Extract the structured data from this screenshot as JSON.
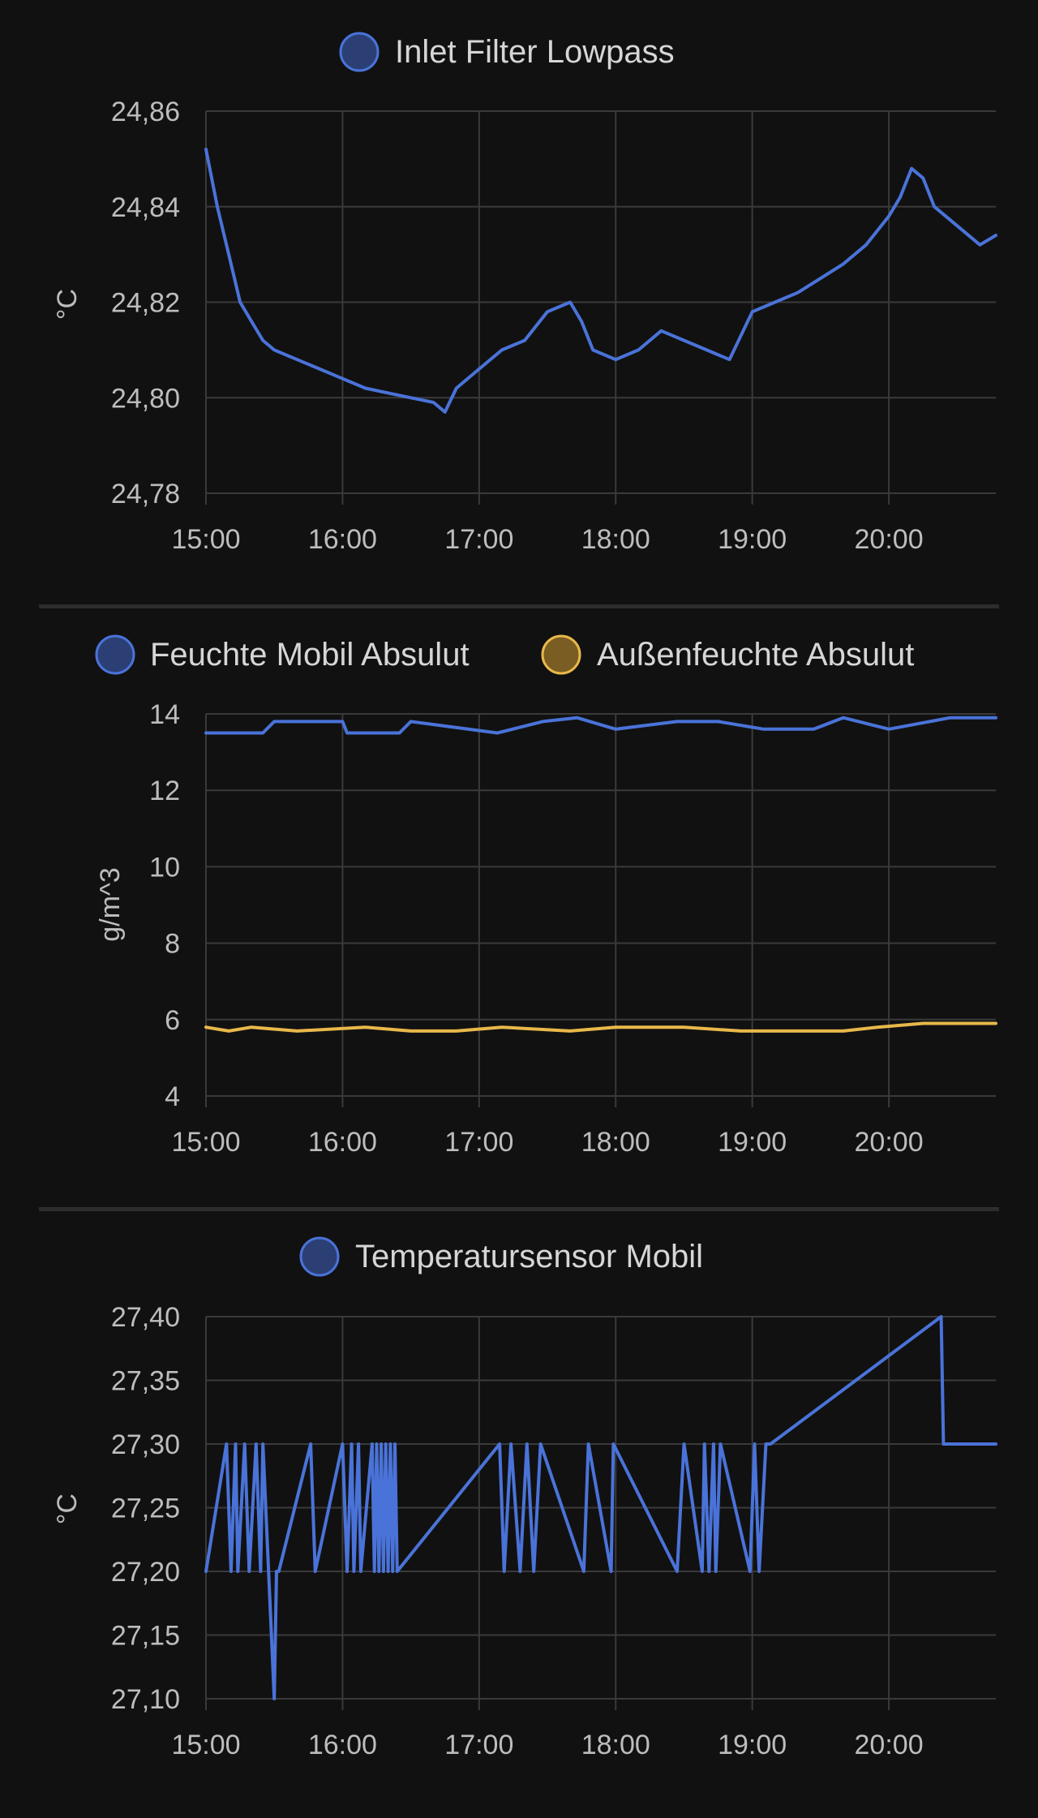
{
  "colors": {
    "background": "#111111",
    "grid": "#3a3a3a",
    "divider": "#2d2d2d",
    "text": "#d6d6d6",
    "tick_text": "#bdbdbd",
    "series_blue": "#4a73d9",
    "series_yellow": "#e8b84a"
  },
  "chart_data": [
    {
      "type": "line",
      "legend": [
        "Inlet Filter Lowpass"
      ],
      "ylabel": "°C",
      "xlabel": "",
      "x_ticks": [
        "15:00",
        "16:00",
        "17:00",
        "18:00",
        "19:00",
        "20:00"
      ],
      "y_ticks": [
        "24,78",
        "24,80",
        "24,82",
        "24,84",
        "24,86"
      ],
      "xlim": [
        "15:00",
        "20:47"
      ],
      "ylim": [
        24.78,
        24.86
      ],
      "grid": true,
      "legend_position": "top-center",
      "series": [
        {
          "name": "Inlet Filter Lowpass",
          "color": "#4a73d9",
          "x": [
            "15:00",
            "15:05",
            "15:10",
            "15:15",
            "15:20",
            "15:25",
            "15:30",
            "15:40",
            "15:50",
            "16:00",
            "16:10",
            "16:20",
            "16:30",
            "16:40",
            "16:45",
            "16:50",
            "17:00",
            "17:10",
            "17:20",
            "17:30",
            "17:40",
            "17:45",
            "17:50",
            "18:00",
            "18:10",
            "18:20",
            "18:30",
            "18:40",
            "18:50",
            "19:00",
            "19:10",
            "19:20",
            "19:30",
            "19:40",
            "19:50",
            "20:00",
            "20:05",
            "20:10",
            "20:15",
            "20:20",
            "20:30",
            "20:40",
            "20:47"
          ],
          "y": [
            24.852,
            24.84,
            24.83,
            24.82,
            24.816,
            24.812,
            24.81,
            24.808,
            24.806,
            24.804,
            24.802,
            24.801,
            24.8,
            24.799,
            24.797,
            24.802,
            24.806,
            24.81,
            24.812,
            24.818,
            24.82,
            24.816,
            24.81,
            24.808,
            24.81,
            24.814,
            24.812,
            24.81,
            24.808,
            24.818,
            24.82,
            24.822,
            24.825,
            24.828,
            24.832,
            24.838,
            24.842,
            24.848,
            24.846,
            24.84,
            24.836,
            24.832,
            24.834
          ]
        }
      ]
    },
    {
      "type": "line",
      "legend": [
        "Feuchte Mobil Absulut",
        "Außenfeuchte Absulut"
      ],
      "ylabel": "g/m^3",
      "xlabel": "",
      "x_ticks": [
        "15:00",
        "16:00",
        "17:00",
        "18:00",
        "19:00",
        "20:00"
      ],
      "y_ticks": [
        "4",
        "6",
        "8",
        "10",
        "12",
        "14"
      ],
      "xlim": [
        "15:00",
        "20:47"
      ],
      "ylim": [
        4,
        14
      ],
      "grid": true,
      "legend_position": "top-center",
      "series": [
        {
          "name": "Feuchte Mobil Absulut",
          "color": "#4a73d9",
          "x": [
            "15:00",
            "15:25",
            "15:30",
            "16:00",
            "16:02",
            "16:25",
            "16:30",
            "17:08",
            "17:28",
            "17:43",
            "18:00",
            "18:27",
            "18:45",
            "19:05",
            "19:27",
            "19:40",
            "20:00",
            "20:27",
            "20:47"
          ],
          "y": [
            13.5,
            13.5,
            13.8,
            13.8,
            13.5,
            13.5,
            13.8,
            13.5,
            13.8,
            13.9,
            13.6,
            13.8,
            13.8,
            13.6,
            13.6,
            13.9,
            13.6,
            13.9,
            13.9
          ]
        },
        {
          "name": "Außenfeuchte Absulut",
          "color": "#e8b84a",
          "x": [
            "15:00",
            "15:10",
            "15:20",
            "15:40",
            "16:10",
            "16:30",
            "16:50",
            "17:10",
            "17:40",
            "18:00",
            "18:30",
            "18:55",
            "19:15",
            "19:40",
            "19:55",
            "20:15",
            "20:47"
          ],
          "y": [
            5.8,
            5.7,
            5.8,
            5.7,
            5.8,
            5.7,
            5.7,
            5.8,
            5.7,
            5.8,
            5.8,
            5.7,
            5.7,
            5.7,
            5.8,
            5.9,
            5.9
          ]
        }
      ]
    },
    {
      "type": "line",
      "legend": [
        "Temperatursensor Mobil"
      ],
      "ylabel": "°C",
      "xlabel": "",
      "x_ticks": [
        "15:00",
        "16:00",
        "17:00",
        "18:00",
        "19:00",
        "20:00"
      ],
      "y_ticks": [
        "27,10",
        "27,15",
        "27,20",
        "27,25",
        "27,30",
        "27,35",
        "27,40"
      ],
      "xlim": [
        "15:00",
        "20:47"
      ],
      "ylim": [
        27.1,
        27.4
      ],
      "grid": true,
      "legend_position": "top-center",
      "series": [
        {
          "name": "Temperatursensor Mobil",
          "color": "#4a73d9",
          "x": [
            "15:00",
            "15:09",
            "15:11",
            "15:13",
            "15:14",
            "15:17",
            "15:19",
            "15:22",
            "15:24",
            "15:25",
            "15:30",
            "15:31",
            "15:32",
            "15:46",
            "15:48",
            "16:00",
            "16:02",
            "16:04",
            "16:05",
            "16:07",
            "16:08",
            "16:13",
            "16:14",
            "16:15",
            "16:16",
            "16:17",
            "16:18",
            "16:19",
            "16:20",
            "16:21",
            "16:22",
            "16:23",
            "16:24",
            "17:09",
            "17:11",
            "17:14",
            "17:18",
            "17:21",
            "17:24",
            "17:27",
            "17:46",
            "17:48",
            "17:58",
            "17:59",
            "18:27",
            "18:30",
            "18:38",
            "18:39",
            "18:41",
            "18:43",
            "18:44",
            "18:46",
            "18:59",
            "19:01",
            "19:03",
            "19:06",
            "19:08",
            "20:23",
            "20:24",
            "20:47"
          ],
          "y": [
            27.2,
            27.3,
            27.2,
            27.3,
            27.2,
            27.3,
            27.2,
            27.3,
            27.2,
            27.3,
            27.1,
            27.2,
            27.2,
            27.3,
            27.2,
            27.3,
            27.2,
            27.3,
            27.2,
            27.3,
            27.2,
            27.3,
            27.2,
            27.3,
            27.2,
            27.3,
            27.2,
            27.3,
            27.2,
            27.3,
            27.2,
            27.3,
            27.2,
            27.3,
            27.2,
            27.3,
            27.2,
            27.3,
            27.2,
            27.3,
            27.2,
            27.3,
            27.2,
            27.3,
            27.2,
            27.3,
            27.2,
            27.3,
            27.2,
            27.3,
            27.2,
            27.3,
            27.2,
            27.3,
            27.2,
            27.3,
            27.3,
            27.4,
            27.3,
            27.3
          ]
        }
      ]
    }
  ]
}
